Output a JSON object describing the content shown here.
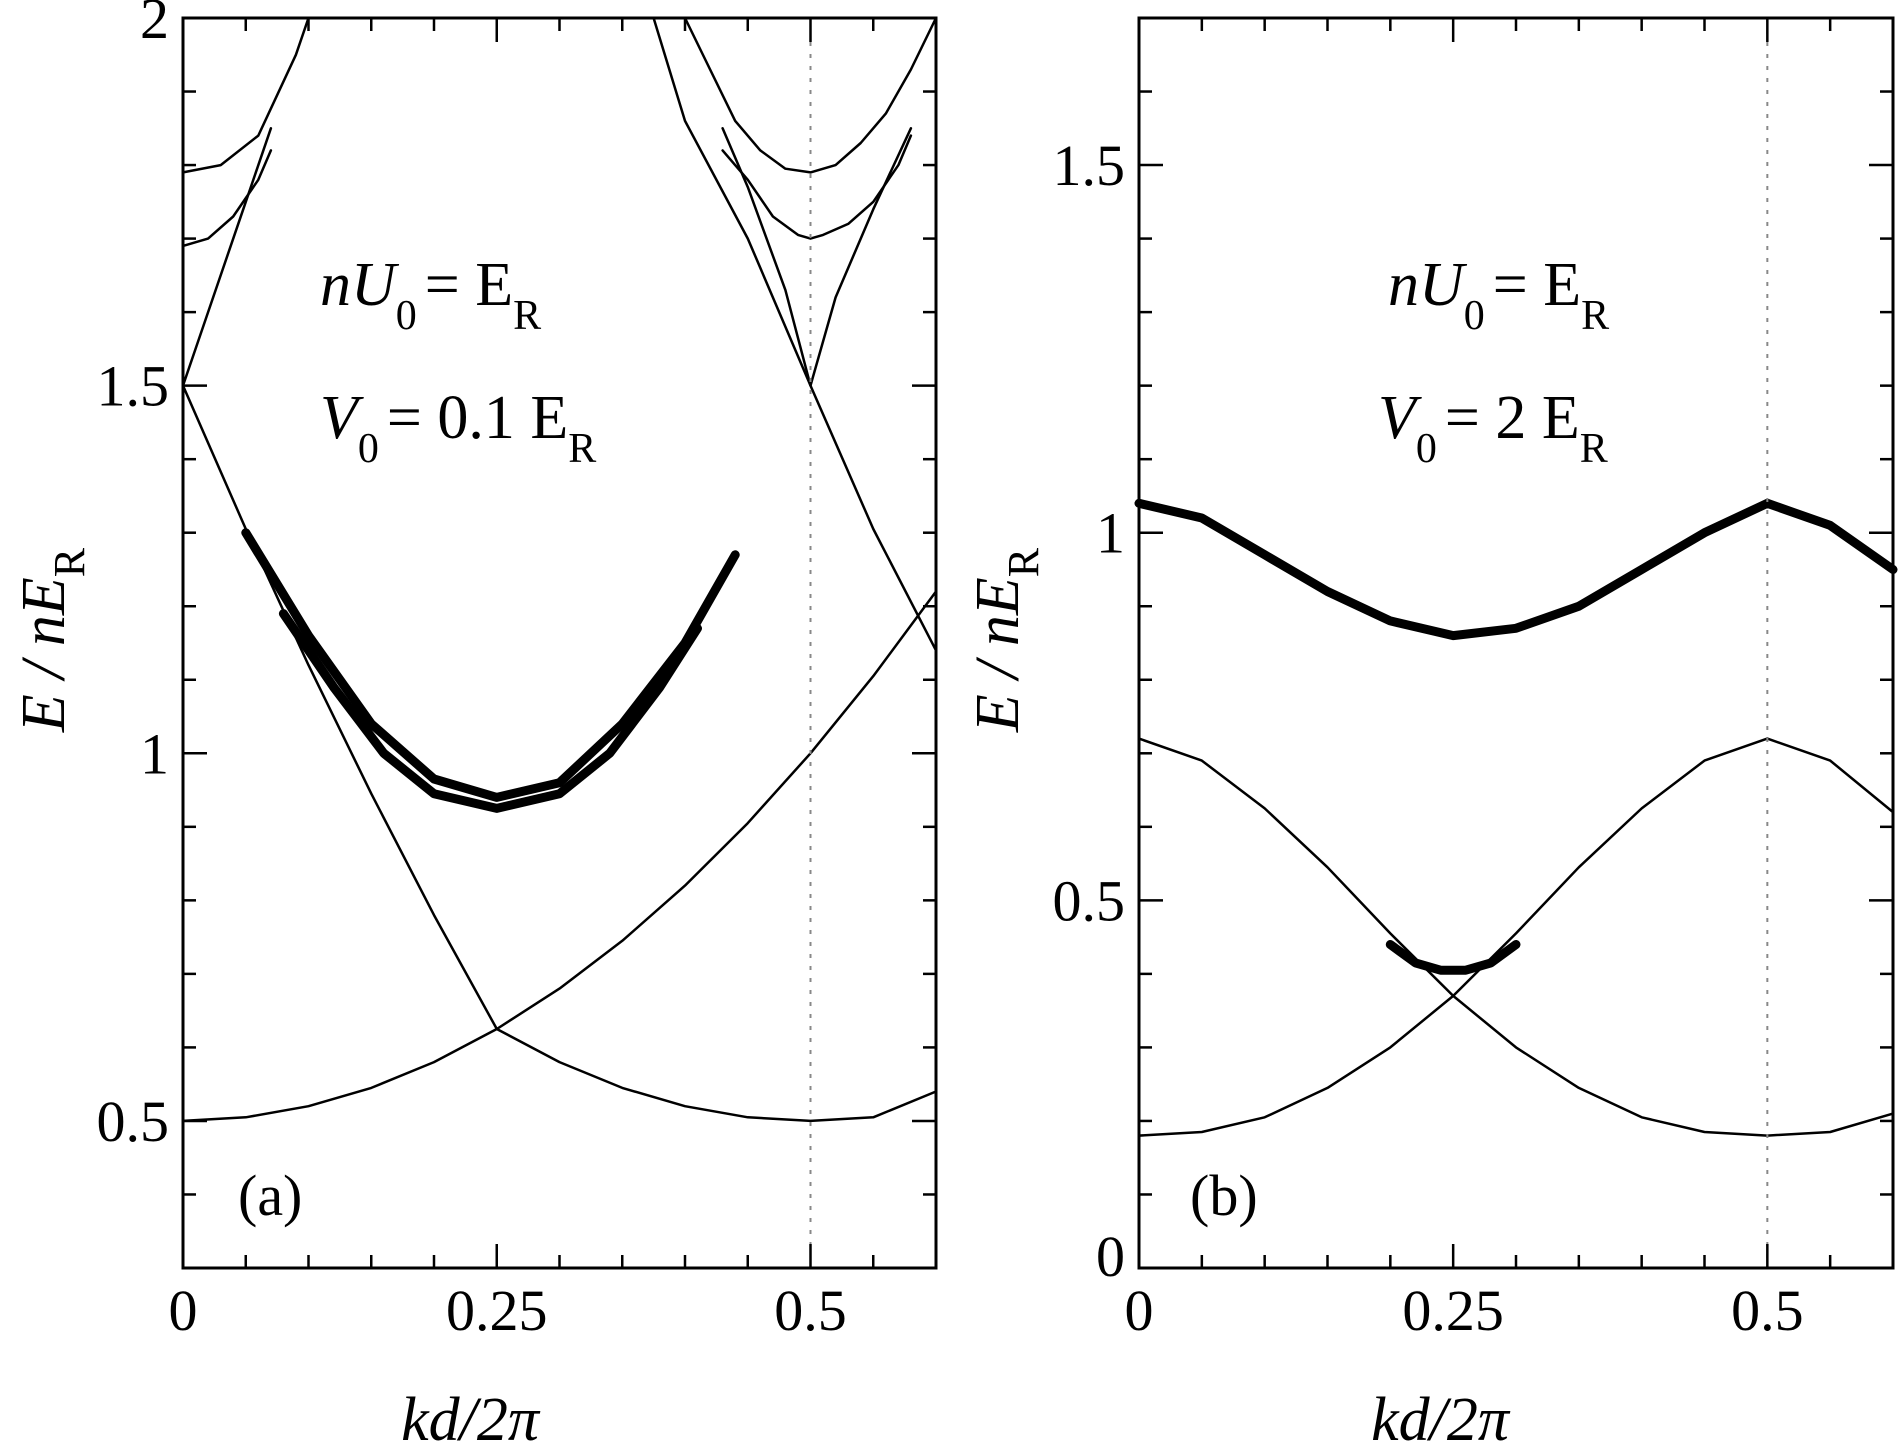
{
  "figure": {
    "background": "#ffffff",
    "line_color": "#000000"
  },
  "chart_data": [
    {
      "type": "line",
      "panel_label": "(a)",
      "xlabel": "kd/2π",
      "ylabel": "E / nE_R",
      "xlim": [
        0,
        0.6
      ],
      "ylim": [
        0.3,
        2.0
      ],
      "grid": false,
      "xticks": [
        {
          "value": 0,
          "label": "0"
        },
        {
          "value": 0.25,
          "label": "0.25"
        },
        {
          "value": 0.5,
          "label": "0.5"
        }
      ],
      "yticks": [
        {
          "value": 0.5,
          "label": "0.5"
        },
        {
          "value": 1.0,
          "label": "1"
        },
        {
          "value": 1.5,
          "label": "1.5"
        },
        {
          "value": 2.0,
          "label": "2"
        }
      ],
      "reference_line_x": 0.5,
      "annotations": [
        {
          "line": "nU0 = ER",
          "main": "nU",
          "sub": "0",
          "rest": "= E",
          "sub2": "R",
          "position": "upper-center"
        },
        {
          "line": "V0 = 0.1 ER",
          "main": "V",
          "sub": "0",
          "rest": "= 0.1 E",
          "sub2": "R",
          "position": "upper-center"
        }
      ],
      "series": [
        {
          "style": "thin",
          "x": [
            0,
            0.05,
            0.1,
            0.15,
            0.2,
            0.25,
            0.3,
            0.35,
            0.4,
            0.45,
            0.5,
            0.55,
            0.6
          ],
          "y": [
            0.5,
            0.505,
            0.52,
            0.545,
            0.58,
            0.625,
            0.68,
            0.745,
            0.82,
            0.905,
            1.0,
            1.105,
            1.22
          ]
        },
        {
          "style": "thin",
          "x": [
            0,
            0.05,
            0.1,
            0.15,
            0.2,
            0.25,
            0.3,
            0.35,
            0.4,
            0.45,
            0.5,
            0.55,
            0.6
          ],
          "y": [
            1.5,
            1.305,
            1.12,
            0.945,
            0.78,
            0.625,
            0.58,
            0.545,
            0.52,
            0.505,
            0.5,
            0.505,
            0.54
          ]
        },
        {
          "style": "thin",
          "x": [
            0.375,
            0.4,
            0.45,
            0.5,
            0.55,
            0.6
          ],
          "y": [
            2.0,
            1.86,
            1.7,
            1.5,
            1.305,
            1.14
          ]
        },
        {
          "style": "thin",
          "x": [
            0,
            0.02,
            0.05,
            0.07
          ],
          "y": [
            1.5,
            1.6,
            1.75,
            1.85
          ]
        },
        {
          "style": "thin",
          "x": [
            0.43,
            0.45,
            0.48,
            0.5,
            0.52,
            0.55,
            0.58
          ],
          "y": [
            1.85,
            1.77,
            1.63,
            1.5,
            1.62,
            1.74,
            1.85
          ]
        },
        {
          "style": "thin",
          "x": [
            0,
            0.02,
            0.04,
            0.06,
            0.07
          ],
          "y": [
            1.69,
            1.7,
            1.73,
            1.78,
            1.82
          ]
        },
        {
          "style": "thin",
          "x": [
            0.43,
            0.45,
            0.47,
            0.49,
            0.5,
            0.51,
            0.53,
            0.55,
            0.57,
            0.58
          ],
          "y": [
            1.82,
            1.78,
            1.73,
            1.705,
            1.7,
            1.705,
            1.72,
            1.75,
            1.8,
            1.84
          ]
        },
        {
          "style": "thin",
          "x": [
            0,
            0.03,
            0.06,
            0.09,
            0.1
          ],
          "y": [
            1.79,
            1.8,
            1.84,
            1.95,
            2.0
          ]
        },
        {
          "style": "thin",
          "x": [
            0.4,
            0.42,
            0.44,
            0.46,
            0.48,
            0.5,
            0.52,
            0.54,
            0.56,
            0.58,
            0.6
          ],
          "y": [
            2.0,
            1.93,
            1.86,
            1.82,
            1.795,
            1.79,
            1.8,
            1.83,
            1.87,
            1.93,
            2.0
          ]
        },
        {
          "style": "thick",
          "x": [
            0.05,
            0.1,
            0.15,
            0.2,
            0.25,
            0.3,
            0.35,
            0.4,
            0.44
          ],
          "y": [
            1.3,
            1.16,
            1.04,
            0.965,
            0.94,
            0.96,
            1.04,
            1.15,
            1.27
          ]
        },
        {
          "style": "thick",
          "x": [
            0.08,
            0.12,
            0.16,
            0.2,
            0.25,
            0.3,
            0.34,
            0.38,
            0.41
          ],
          "y": [
            1.19,
            1.09,
            1.0,
            0.945,
            0.925,
            0.945,
            1.0,
            1.09,
            1.17
          ]
        }
      ]
    },
    {
      "type": "line",
      "panel_label": "(b)",
      "xlabel": "kd/2π",
      "ylabel": "E / nE_R",
      "xlim": [
        0,
        0.6
      ],
      "ylim": [
        0,
        1.7
      ],
      "grid": false,
      "xticks": [
        {
          "value": 0,
          "label": "0"
        },
        {
          "value": 0.25,
          "label": "0.25"
        },
        {
          "value": 0.5,
          "label": "0.5"
        }
      ],
      "yticks": [
        {
          "value": 0,
          "label": "0"
        },
        {
          "value": 0.5,
          "label": "0.5"
        },
        {
          "value": 1.0,
          "label": "1"
        },
        {
          "value": 1.5,
          "label": "1.5"
        }
      ],
      "reference_line_x": 0.5,
      "annotations": [
        {
          "line": "nU0 = ER",
          "main": "nU",
          "sub": "0",
          "rest": "= E",
          "sub2": "R",
          "position": "upper-center"
        },
        {
          "line": "V0 = 2 ER",
          "main": "V",
          "sub": "0",
          "rest": "= 2 E",
          "sub2": "R",
          "position": "upper-center"
        }
      ],
      "series": [
        {
          "style": "thin",
          "x": [
            0,
            0.05,
            0.1,
            0.15,
            0.2,
            0.25,
            0.3,
            0.35,
            0.4,
            0.45,
            0.5,
            0.55,
            0.6
          ],
          "y": [
            0.18,
            0.185,
            0.205,
            0.245,
            0.3,
            0.37,
            0.455,
            0.545,
            0.625,
            0.69,
            0.72,
            0.69,
            0.62
          ]
        },
        {
          "style": "thin",
          "x": [
            0,
            0.05,
            0.1,
            0.15,
            0.2,
            0.25,
            0.3,
            0.35,
            0.4,
            0.45,
            0.5,
            0.55,
            0.6
          ],
          "y": [
            0.72,
            0.69,
            0.625,
            0.545,
            0.455,
            0.37,
            0.3,
            0.245,
            0.205,
            0.185,
            0.18,
            0.185,
            0.21
          ]
        },
        {
          "style": "thick",
          "x": [
            0.2,
            0.22,
            0.24,
            0.25,
            0.26,
            0.28,
            0.3
          ],
          "y": [
            0.44,
            0.415,
            0.405,
            0.405,
            0.405,
            0.415,
            0.44
          ]
        },
        {
          "style": "thick",
          "x": [
            0,
            0.05,
            0.1,
            0.15,
            0.2,
            0.25,
            0.3,
            0.35,
            0.4,
            0.45,
            0.5,
            0.55,
            0.6
          ],
          "y": [
            1.04,
            1.02,
            0.97,
            0.92,
            0.88,
            0.86,
            0.87,
            0.9,
            0.95,
            1.0,
            1.04,
            1.01,
            0.95
          ]
        }
      ]
    }
  ]
}
